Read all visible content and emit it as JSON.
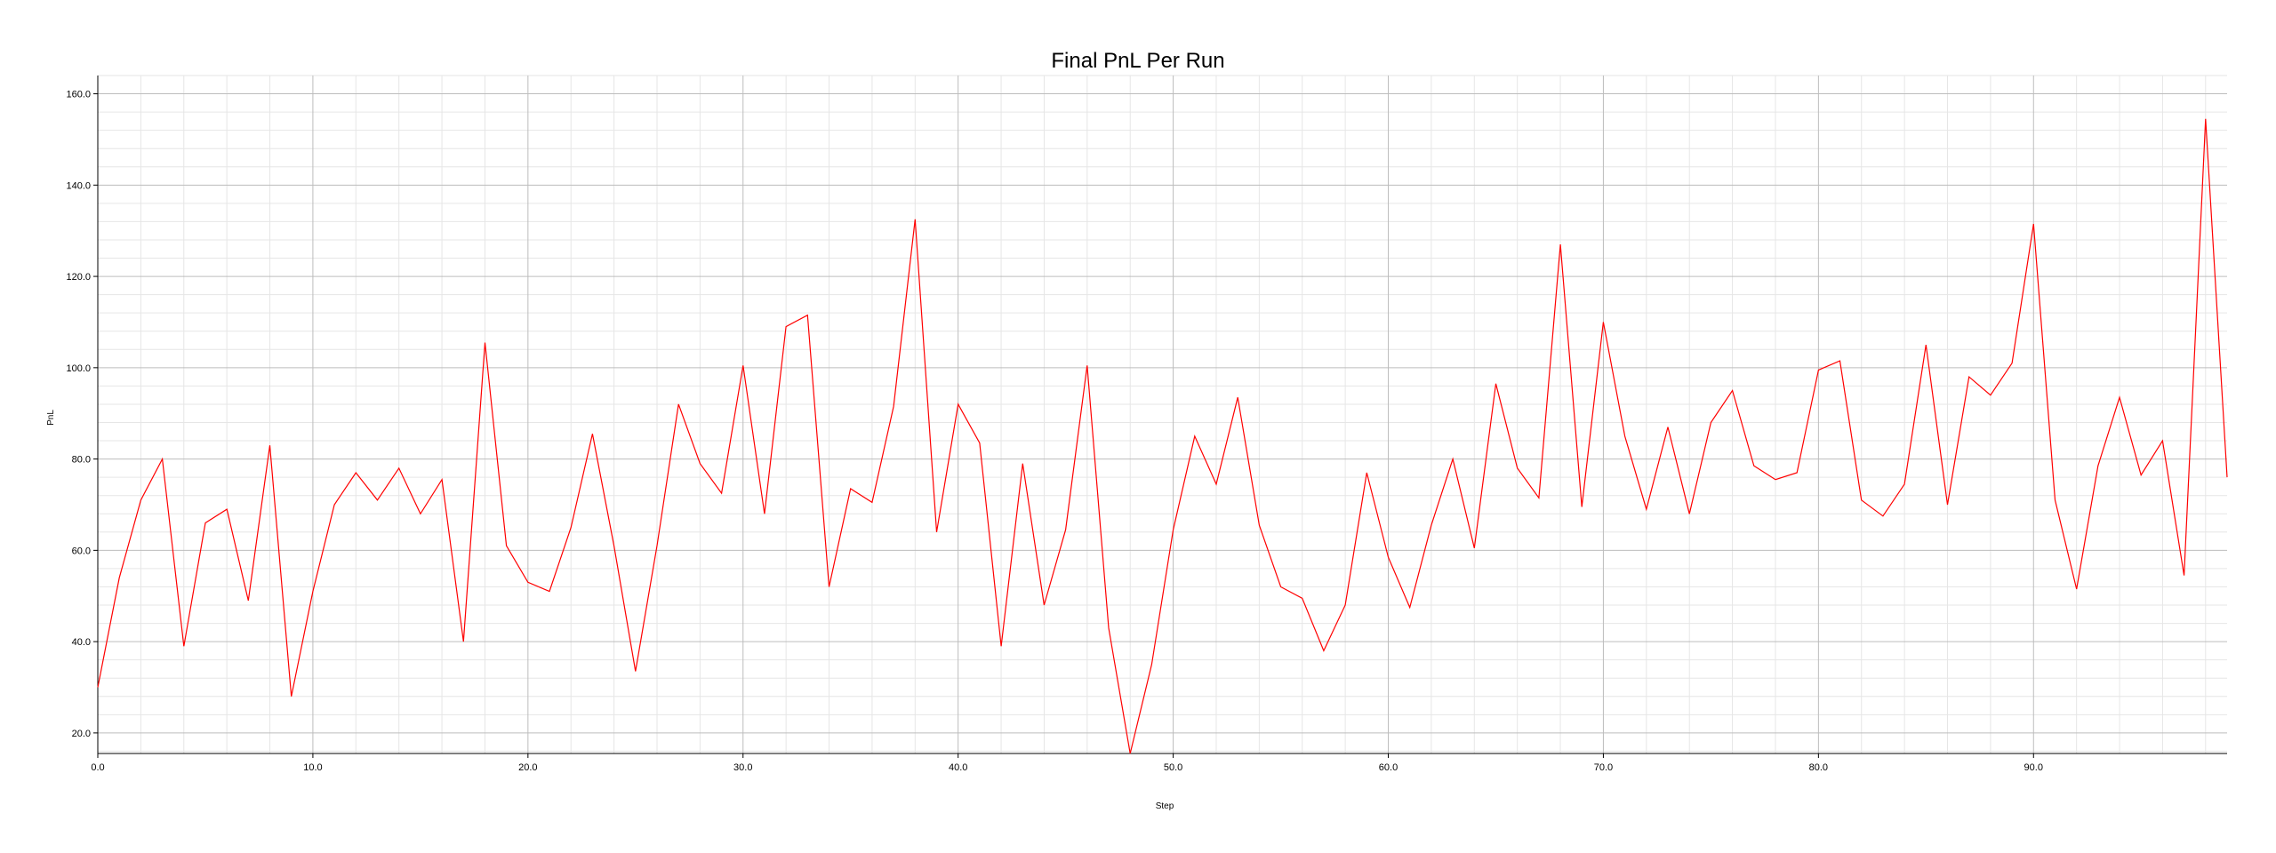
{
  "chart_data": {
    "type": "line",
    "title": "Final PnL Per Run",
    "xlabel": "Step",
    "ylabel": "PnL",
    "xlim": [
      0,
      99
    ],
    "ylim": [
      15.5,
      164
    ],
    "x_ticks": [
      "0.0",
      "10.0",
      "20.0",
      "30.0",
      "40.0",
      "50.0",
      "60.0",
      "70.0",
      "80.0",
      "90.0"
    ],
    "y_ticks": [
      "20.0",
      "40.0",
      "60.0",
      "80.0",
      "100.0",
      "120.0",
      "140.0",
      "160.0"
    ],
    "grid": true,
    "series": [
      {
        "color": "#ff0000",
        "x": [
          0,
          1,
          2,
          3,
          4,
          5,
          6,
          7,
          8,
          9,
          10,
          11,
          12,
          13,
          14,
          15,
          16,
          17,
          18,
          19,
          20,
          21,
          22,
          23,
          24,
          25,
          26,
          27,
          28,
          29,
          30,
          31,
          32,
          33,
          34,
          35,
          36,
          37,
          38,
          39,
          40,
          41,
          42,
          43,
          44,
          45,
          46,
          47,
          48,
          49,
          50,
          51,
          52,
          53,
          54,
          55,
          56,
          57,
          58,
          59,
          60,
          61,
          62,
          63,
          64,
          65,
          66,
          67,
          68,
          69,
          70,
          71,
          72,
          73,
          74,
          75,
          76,
          77,
          78,
          79,
          80,
          81,
          82,
          83,
          84,
          85,
          86,
          87,
          88,
          89,
          90,
          91,
          92,
          93,
          94,
          95,
          96,
          97,
          98,
          99
        ],
        "values": [
          30,
          54,
          71,
          80,
          39,
          66,
          69,
          49,
          83,
          28,
          51,
          70,
          77,
          71,
          78,
          68,
          75.5,
          40,
          105.5,
          61,
          53,
          51,
          65,
          85.5,
          61,
          33.5,
          61,
          92,
          79,
          72.5,
          100.5,
          68,
          109,
          111.5,
          52,
          73.5,
          70.5,
          91.5,
          132.5,
          64,
          92,
          83.5,
          39,
          79,
          48,
          64.5,
          100.5,
          43,
          15.5,
          35,
          64.5,
          85,
          74.5,
          93.5,
          65.5,
          52,
          49.5,
          38,
          48,
          77,
          58.5,
          47.5,
          65.5,
          80,
          60.5,
          96.5,
          78,
          71.5,
          127,
          69.5,
          110,
          85,
          69,
          87,
          68,
          88,
          95,
          78.5,
          75.5,
          77,
          99.5,
          101.5,
          71,
          67.5,
          74.5,
          105,
          70,
          98,
          94,
          101,
          131.5,
          71,
          51.5,
          78.5,
          93.5,
          76.5,
          84,
          54.5,
          154.5,
          76
        ]
      }
    ]
  }
}
